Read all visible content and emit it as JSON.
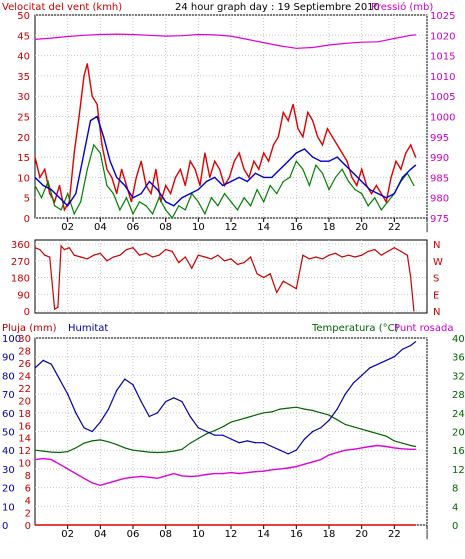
{
  "panel_top": {
    "left_title": "Velocitat del vent (kmh)",
    "center_title": "24 hour graph day : 19 Septiembre 2010",
    "right_title": "Pressió (mb)"
  },
  "panel_bottom": {
    "left_title_rain": "Pluja (mm)",
    "left_title_hum": "Humitat",
    "right_title_temp": "Temperatura (°C)",
    "right_title_dew": "Punt rosada"
  },
  "colors": {
    "wind_gust": "#e00000",
    "wind_avg": "#008000",
    "wind_avg2": "#0000cc",
    "pressure": "#e000e0",
    "direction": "#cc0000",
    "humidity": "#0000aa",
    "temperature": "#006600",
    "dewpoint": "#e000e0",
    "rain": "#e00000",
    "label_red": "#cc0000",
    "label_magenta": "#cc00cc",
    "label_blue": "#0000aa",
    "label_green": "#006600"
  },
  "chart_data": [
    {
      "type": "line",
      "panel": "wind-pressure",
      "title": "24 hour graph day : 19 Septiembre 2010",
      "ylabel_left": "Velocitat del vent (kmh)",
      "ylabel_right": "Pressió (mb)",
      "x_ticks": [
        "02",
        "04",
        "06",
        "08",
        "10",
        "12",
        "14",
        "16",
        "18",
        "20",
        "22",
        ""
      ],
      "y_left_ticks": [
        "0",
        "5",
        "10",
        "15",
        "20",
        "25",
        "30",
        "35",
        "40",
        "45",
        "50"
      ],
      "y_left_range": [
        0,
        50
      ],
      "y_right_ticks": [
        "975",
        "980",
        "985",
        "990",
        "995",
        "1000",
        "1005",
        "1010",
        "1015",
        "1020",
        "1025"
      ],
      "y_right_range": [
        975,
        1025
      ],
      "x_range": [
        0,
        24
      ],
      "series": [
        {
          "key": "gust",
          "x": [
            0,
            0.3,
            0.6,
            0.9,
            1.2,
            1.5,
            1.8,
            2.1,
            2.4,
            2.7,
            3.0,
            3.2,
            3.5,
            3.8,
            4.1,
            4.4,
            4.7,
            5.0,
            5.3,
            5.6,
            5.9,
            6.2,
            6.5,
            6.8,
            7.1,
            7.4,
            7.7,
            8.0,
            8.3,
            8.6,
            8.9,
            9.2,
            9.5,
            9.8,
            10.1,
            10.4,
            10.7,
            11.0,
            11.3,
            11.6,
            11.9,
            12.2,
            12.5,
            12.8,
            13.1,
            13.4,
            13.7,
            14.0,
            14.3,
            14.6,
            14.9,
            15.2,
            15.5,
            15.8,
            16.1,
            16.4,
            16.7,
            17.0,
            17.3,
            17.6,
            17.9,
            18.2,
            18.5,
            18.8,
            19.1,
            19.4,
            19.7,
            20.0,
            20.3,
            20.6,
            20.9,
            21.2,
            21.5,
            21.8,
            22.1,
            22.4,
            22.7,
            23.0,
            23.3
          ],
          "values": [
            15,
            10,
            12,
            6,
            4,
            8,
            2,
            4,
            16,
            25,
            35,
            38,
            30,
            28,
            18,
            12,
            10,
            6,
            12,
            8,
            4,
            10,
            14,
            8,
            6,
            12,
            4,
            8,
            6,
            10,
            12,
            8,
            14,
            12,
            8,
            16,
            10,
            14,
            12,
            8,
            10,
            14,
            16,
            12,
            10,
            14,
            12,
            16,
            14,
            18,
            20,
            26,
            24,
            28,
            22,
            20,
            26,
            24,
            20,
            18,
            22,
            20,
            18,
            16,
            14,
            10,
            8,
            12,
            8,
            6,
            8,
            6,
            4,
            10,
            14,
            12,
            16,
            18,
            15
          ]
        },
        {
          "key": "avg_blue",
          "x": [
            0,
            0.5,
            1.0,
            1.5,
            2.0,
            2.5,
            3.0,
            3.4,
            3.8,
            4.2,
            4.6,
            5.0,
            5.5,
            6.0,
            6.5,
            7.0,
            7.5,
            8.0,
            8.5,
            9.0,
            9.5,
            10.0,
            10.5,
            11.0,
            11.5,
            12.0,
            12.5,
            13.0,
            13.5,
            14.0,
            14.5,
            15.0,
            15.5,
            16.0,
            16.5,
            17.0,
            17.5,
            18.0,
            18.5,
            19.0,
            19.5,
            20.0,
            20.5,
            21.0,
            21.5,
            22.0,
            22.5,
            23.0,
            23.3
          ],
          "values": [
            10,
            8,
            7,
            5,
            3,
            6,
            16,
            24,
            25,
            20,
            14,
            10,
            8,
            5,
            6,
            9,
            7,
            4,
            3,
            5,
            6,
            7,
            9,
            10,
            8,
            9,
            10,
            9,
            11,
            10,
            10,
            12,
            14,
            16,
            17,
            15,
            14,
            14,
            15,
            13,
            11,
            9,
            7,
            6,
            5,
            6,
            10,
            12,
            13
          ]
        },
        {
          "key": "avg_green",
          "x": [
            0,
            0.4,
            0.8,
            1.2,
            1.6,
            2.0,
            2.4,
            2.8,
            3.2,
            3.6,
            4.0,
            4.4,
            4.8,
            5.2,
            5.6,
            6.0,
            6.4,
            6.8,
            7.2,
            7.6,
            8.0,
            8.4,
            8.8,
            9.2,
            9.6,
            10.0,
            10.4,
            10.8,
            11.2,
            11.6,
            12.0,
            12.4,
            12.8,
            13.2,
            13.6,
            14.0,
            14.4,
            14.8,
            15.2,
            15.6,
            16.0,
            16.4,
            16.8,
            17.2,
            17.6,
            18.0,
            18.4,
            18.8,
            19.2,
            19.6,
            20.0,
            20.4,
            20.8,
            21.2,
            21.6,
            22.0,
            22.4,
            22.8,
            23.2
          ],
          "values": [
            8,
            5,
            9,
            3,
            2,
            6,
            1,
            4,
            12,
            18,
            16,
            8,
            6,
            2,
            5,
            1,
            4,
            3,
            1,
            5,
            2,
            0,
            3,
            2,
            6,
            4,
            1,
            5,
            3,
            6,
            4,
            2,
            5,
            3,
            7,
            4,
            8,
            6,
            9,
            10,
            14,
            12,
            8,
            13,
            11,
            7,
            10,
            12,
            9,
            7,
            6,
            3,
            5,
            2,
            4,
            6,
            9,
            11,
            8
          ]
        },
        {
          "key": "pressure",
          "axis": "right",
          "x": [
            0,
            1,
            2,
            3,
            4,
            5,
            6,
            7,
            8,
            9,
            10,
            11,
            12,
            13,
            14,
            15,
            16,
            17,
            18,
            19,
            20,
            21,
            22,
            23,
            23.3
          ],
          "values": [
            1019,
            1019.3,
            1019.7,
            1020,
            1020.2,
            1020.3,
            1020.2,
            1020,
            1019.8,
            1019.9,
            1020.2,
            1020.1,
            1019.8,
            1019,
            1018.2,
            1017.4,
            1016.8,
            1017,
            1017.6,
            1018,
            1018.3,
            1018.4,
            1019.2,
            1020,
            1020.1
          ]
        }
      ]
    },
    {
      "type": "line",
      "panel": "wind-direction",
      "y_left_ticks": [
        "0",
        "90",
        "180",
        "270",
        "360"
      ],
      "y_left_range": [
        0,
        360
      ],
      "y_right_ticks": [
        "N",
        "E",
        "S",
        "W",
        "N"
      ],
      "x_range": [
        0,
        24
      ],
      "series": [
        {
          "key": "direction",
          "x": [
            0,
            0.3,
            0.6,
            0.9,
            1.2,
            1.4,
            1.6,
            1.8,
            2.1,
            2.4,
            2.8,
            3.2,
            3.6,
            4.0,
            4.4,
            4.8,
            5.2,
            5.6,
            6.0,
            6.4,
            6.8,
            7.2,
            7.6,
            8.0,
            8.4,
            8.8,
            9.2,
            9.6,
            10.0,
            10.4,
            10.8,
            11.2,
            11.6,
            12.0,
            12.4,
            12.8,
            13.2,
            13.6,
            14.0,
            14.4,
            14.8,
            15.2,
            15.6,
            16.0,
            16.4,
            16.8,
            17.2,
            17.6,
            18.0,
            18.4,
            18.8,
            19.2,
            19.6,
            20.0,
            20.4,
            20.8,
            21.2,
            21.6,
            22.0,
            22.4,
            22.8,
            23.0,
            23.2
          ],
          "values": [
            340,
            330,
            300,
            290,
            10,
            20,
            350,
            330,
            340,
            300,
            290,
            280,
            300,
            310,
            270,
            290,
            300,
            330,
            340,
            300,
            310,
            290,
            300,
            330,
            320,
            260,
            290,
            230,
            300,
            290,
            280,
            300,
            270,
            280,
            250,
            260,
            290,
            200,
            180,
            200,
            100,
            160,
            140,
            120,
            300,
            280,
            290,
            280,
            300,
            310,
            290,
            300,
            290,
            300,
            320,
            330,
            300,
            320,
            340,
            320,
            300,
            180,
            0
          ]
        }
      ]
    },
    {
      "type": "line",
      "panel": "humidity-temperature",
      "ylabel_left": "Pluja (mm)",
      "ylabel_left2": "Humitat",
      "ylabel_right": "Temperatura (°C)",
      "ylabel_right2": "Punt rosada",
      "x_ticks": [
        "02",
        "04",
        "06",
        "08",
        "10",
        "12",
        "14",
        "16",
        "18",
        "20",
        "22",
        ""
      ],
      "y_left_ticks_rain": [
        "0",
        "2",
        "4",
        "6",
        "8",
        "10",
        "12",
        "14",
        "16",
        "18",
        "20",
        "22",
        "24",
        "26",
        "28",
        "30"
      ],
      "y_left_ticks_hum": [
        "0",
        "10",
        "20",
        "30",
        "40",
        "50",
        "60",
        "70",
        "80",
        "90",
        "100"
      ],
      "y_left_range": [
        0,
        100
      ],
      "y_right_ticks_a": [
        "0",
        "4",
        "8",
        "12",
        "16",
        "20",
        "24",
        "28",
        "32",
        "36",
        "40"
      ],
      "y_right_ticks_b": [
        "0",
        "2",
        "4",
        "6",
        "8",
        "10",
        "12",
        "14",
        "16",
        "18",
        "20",
        "22",
        "24",
        "26",
        "28",
        "30",
        "32",
        "34",
        "36",
        "38",
        "40"
      ],
      "y_right_range": [
        0,
        40
      ],
      "x_range": [
        0,
        24
      ],
      "series": [
        {
          "key": "humidity",
          "axis": "left",
          "x": [
            0,
            0.5,
            1.0,
            1.5,
            2.0,
            2.5,
            3.0,
            3.5,
            4.0,
            4.5,
            5.0,
            5.5,
            6.0,
            6.5,
            7.0,
            7.5,
            8.0,
            8.5,
            9.0,
            9.5,
            10.0,
            10.5,
            11.0,
            11.5,
            12.0,
            12.5,
            13.0,
            13.5,
            14.0,
            14.5,
            15.0,
            15.5,
            16.0,
            16.5,
            17.0,
            17.5,
            18.0,
            18.5,
            19.0,
            19.5,
            20.0,
            20.5,
            21.0,
            21.5,
            22.0,
            22.5,
            23.0,
            23.3
          ],
          "values": [
            84,
            88,
            86,
            78,
            70,
            60,
            52,
            50,
            55,
            62,
            72,
            78,
            75,
            66,
            58,
            60,
            66,
            68,
            66,
            58,
            52,
            50,
            48,
            48,
            46,
            44,
            45,
            44,
            44,
            42,
            40,
            38,
            40,
            46,
            50,
            52,
            56,
            62,
            70,
            76,
            80,
            84,
            86,
            88,
            90,
            94,
            96,
            98
          ]
        },
        {
          "key": "temperature",
          "axis": "right",
          "x": [
            0,
            0.5,
            1.0,
            1.5,
            2.0,
            2.5,
            3.0,
            3.5,
            4.0,
            4.5,
            5.0,
            5.5,
            6.0,
            6.5,
            7.0,
            7.5,
            8.0,
            8.5,
            9.0,
            9.5,
            10.0,
            10.5,
            11.0,
            11.5,
            12.0,
            12.5,
            13.0,
            13.5,
            14.0,
            14.5,
            15.0,
            15.5,
            16.0,
            16.5,
            17.0,
            17.5,
            18.0,
            18.5,
            19.0,
            19.5,
            20.0,
            20.5,
            21.0,
            21.5,
            22.0,
            22.5,
            23.0,
            23.3
          ],
          "values": [
            16,
            15.8,
            15.6,
            15.5,
            15.7,
            16.5,
            17.5,
            18,
            18.2,
            17.8,
            17.2,
            16.5,
            16,
            15.8,
            15.6,
            15.5,
            15.6,
            15.8,
            16.2,
            17.5,
            18.5,
            19.5,
            20.2,
            21,
            22,
            22.5,
            23,
            23.5,
            24,
            24.2,
            24.8,
            25,
            25.2,
            24.8,
            24.5,
            24,
            23.5,
            22.5,
            21.5,
            21,
            20.5,
            20,
            19.5,
            19,
            18,
            17.5,
            17,
            16.8
          ]
        },
        {
          "key": "dewpoint",
          "axis": "right",
          "x": [
            0,
            0.5,
            1.0,
            1.5,
            2.0,
            2.5,
            3.0,
            3.5,
            4.0,
            4.5,
            5.0,
            5.5,
            6.0,
            6.5,
            7.0,
            7.5,
            8.0,
            8.5,
            9.0,
            9.5,
            10.0,
            10.5,
            11.0,
            11.5,
            12.0,
            12.5,
            13.0,
            13.5,
            14.0,
            14.5,
            15.0,
            15.5,
            16.0,
            16.5,
            17.0,
            17.5,
            18.0,
            18.5,
            19.0,
            19.5,
            20.0,
            20.5,
            21.0,
            21.5,
            22.0,
            22.5,
            23.0,
            23.3
          ],
          "values": [
            14,
            14.2,
            14,
            13,
            12,
            11,
            10,
            9,
            8.5,
            9,
            9.5,
            10,
            10.2,
            10.4,
            10.2,
            10,
            10.5,
            11,
            10.5,
            10.4,
            10.5,
            10.8,
            11,
            11,
            11.2,
            11,
            11.2,
            11.4,
            11.5,
            11.8,
            12,
            12.2,
            12.5,
            13,
            13.5,
            14,
            15,
            15.5,
            16,
            16.2,
            16.5,
            16.8,
            17,
            16.8,
            16.5,
            16.3,
            16.2,
            16.2
          ]
        },
        {
          "key": "rain",
          "axis": "left",
          "x": [
            0,
            23.3
          ],
          "values": [
            0,
            0
          ]
        }
      ]
    }
  ]
}
